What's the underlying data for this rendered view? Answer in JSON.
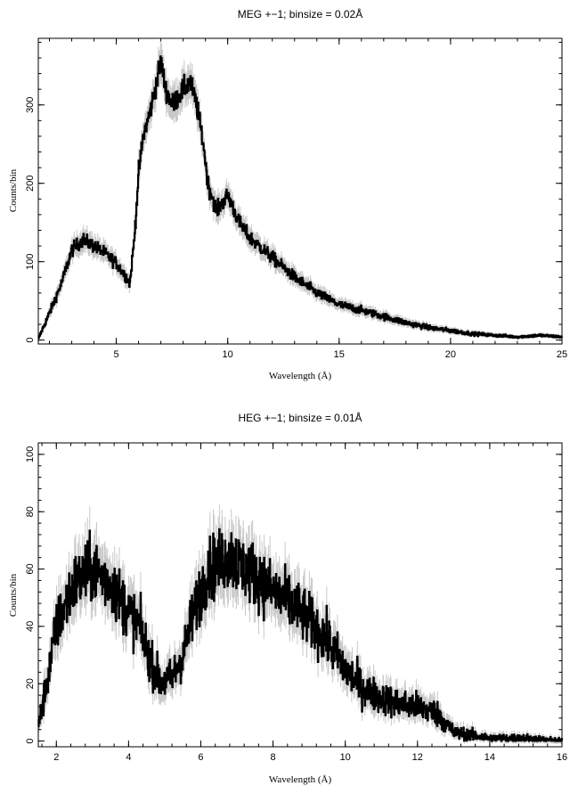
{
  "chart_data": [
    {
      "type": "line",
      "title": "MEG +−1; binsize = 0.02Å",
      "xlabel": "Wavelength (Å)",
      "ylabel": "Counts/bin",
      "xlim": [
        1.5,
        25
      ],
      "ylim": [
        -5,
        385
      ],
      "xticks_major": [
        5,
        10,
        15,
        20,
        25
      ],
      "yticks_major": [
        0,
        100,
        200,
        300
      ],
      "grid": false,
      "step": 0.02,
      "noise": 0.09,
      "error_bars": true,
      "series": [
        {
          "color": "#000000",
          "points": [
            [
              1.5,
              2
            ],
            [
              2.0,
              35
            ],
            [
              2.5,
              70
            ],
            [
              3.0,
              115
            ],
            [
              3.5,
              128
            ],
            [
              4.0,
              120
            ],
            [
              4.5,
              110
            ],
            [
              5.0,
              98
            ],
            [
              5.5,
              78
            ],
            [
              5.6,
              72
            ],
            [
              5.8,
              130
            ],
            [
              6.0,
              215
            ],
            [
              6.2,
              260
            ],
            [
              6.5,
              290
            ],
            [
              6.8,
              330
            ],
            [
              7.0,
              355
            ],
            [
              7.2,
              320
            ],
            [
              7.5,
              300
            ],
            [
              8.0,
              320
            ],
            [
              8.3,
              330
            ],
            [
              8.6,
              300
            ],
            [
              8.9,
              250
            ],
            [
              9.1,
              200
            ],
            [
              9.5,
              165
            ],
            [
              10.0,
              185
            ],
            [
              10.5,
              150
            ],
            [
              11.0,
              130
            ],
            [
              12.0,
              105
            ],
            [
              13.0,
              80
            ],
            [
              14.0,
              60
            ],
            [
              15.0,
              45
            ],
            [
              16.0,
              38
            ],
            [
              17.0,
              30
            ],
            [
              18.0,
              22
            ],
            [
              19.0,
              16
            ],
            [
              20.0,
              12
            ],
            [
              21.0,
              8
            ],
            [
              22.0,
              6
            ],
            [
              23.0,
              4
            ],
            [
              24.0,
              6
            ],
            [
              25.0,
              4
            ]
          ]
        }
      ]
    },
    {
      "type": "line",
      "title": "HEG +−1; binsize = 0.01Å",
      "xlabel": "Wavelength (Å)",
      "ylabel": "Counts/bin",
      "xlim": [
        1.5,
        16
      ],
      "ylim": [
        -2,
        104
      ],
      "xticks_major": [
        2,
        4,
        6,
        8,
        10,
        12,
        14,
        16
      ],
      "yticks_major": [
        0,
        20,
        40,
        60,
        80,
        100
      ],
      "grid": false,
      "step": 0.01,
      "noise": 0.22,
      "error_bars": true,
      "series": [
        {
          "color": "#000000",
          "points": [
            [
              1.5,
              5
            ],
            [
              1.8,
              25
            ],
            [
              2.0,
              40
            ],
            [
              2.5,
              55
            ],
            [
              3.0,
              60
            ],
            [
              3.5,
              55
            ],
            [
              4.0,
              45
            ],
            [
              4.3,
              40
            ],
            [
              4.6,
              28
            ],
            [
              4.9,
              20
            ],
            [
              5.2,
              22
            ],
            [
              5.5,
              30
            ],
            [
              5.8,
              45
            ],
            [
              6.2,
              60
            ],
            [
              6.5,
              62
            ],
            [
              6.8,
              65
            ],
            [
              7.0,
              62
            ],
            [
              7.5,
              58
            ],
            [
              8.0,
              52
            ],
            [
              8.5,
              48
            ],
            [
              9.0,
              42
            ],
            [
              9.5,
              35
            ],
            [
              10.0,
              25
            ],
            [
              10.5,
              18
            ],
            [
              11.0,
              15
            ],
            [
              11.5,
              13
            ],
            [
              12.0,
              12
            ],
            [
              12.5,
              10
            ],
            [
              12.8,
              6
            ],
            [
              13.0,
              3
            ],
            [
              13.5,
              2
            ],
            [
              14.0,
              1
            ],
            [
              15.0,
              1
            ],
            [
              16.0,
              0
            ]
          ]
        }
      ]
    }
  ]
}
